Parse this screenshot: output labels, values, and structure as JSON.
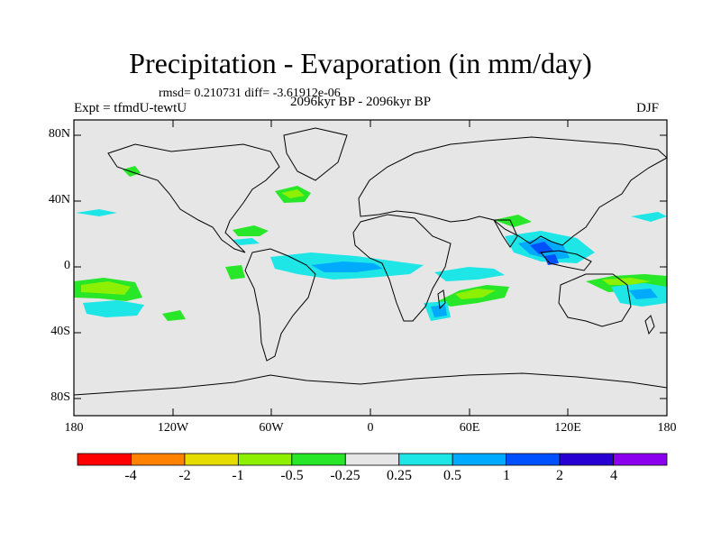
{
  "header": {
    "title": "Precipitation - Evaporation (in mm/day)",
    "stats": "rmsd= 0.210731 diff= -3.61912e-06",
    "period": "2096kyr BP - 2096kyr BP",
    "experiment": "Expt = tfmdU-tewtU",
    "season": "DJF"
  },
  "axes": {
    "y_ticks": [
      "80N",
      "40N",
      "0",
      "40S",
      "80S"
    ],
    "x_ticks": [
      "180",
      "120W",
      "60W",
      "0",
      "60E",
      "120E",
      "180"
    ]
  },
  "colorbar": {
    "labels": [
      "-4",
      "-2",
      "-1",
      "-0.5",
      "-0.25",
      "0.25",
      "0.5",
      "1",
      "2",
      "4"
    ],
    "colors": [
      "#ff0000",
      "#ff8200",
      "#e6dc00",
      "#8cf000",
      "#28e628",
      "#e6e6e6",
      "#1ee6e6",
      "#00aaff",
      "#0050ff",
      "#2800d2",
      "#8c00f0"
    ]
  },
  "map": {
    "background_color": "#e6e6e6",
    "coast_color": "#000000"
  }
}
